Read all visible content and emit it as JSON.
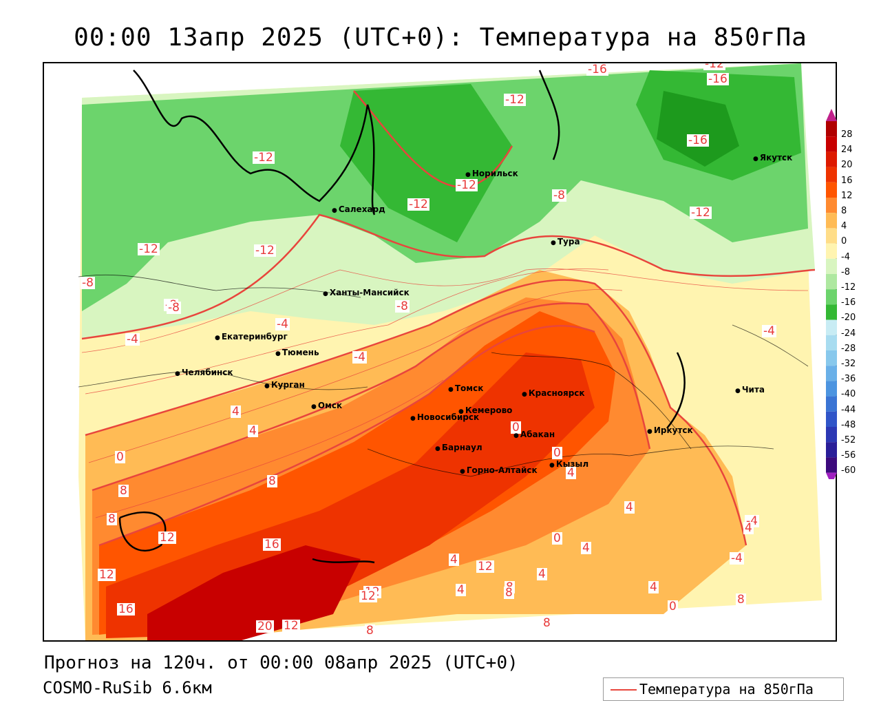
{
  "header": {
    "title": "00:00 13апр 2025 (UTC+0): Температура на 850гПа"
  },
  "footer": {
    "forecast": "Прогноз на 120ч. от 00:00 08апр 2025 (UTC+0)",
    "model": "COSMO-RuSib 6.6км",
    "legend_label": "Температура на 850гПа"
  },
  "colors": {
    "contour": "#e8453c",
    "coast": "#000000"
  },
  "colorbar": {
    "labels": [
      "28",
      "24",
      "20",
      "16",
      "12",
      "8",
      "4",
      "0",
      "-4",
      "-8",
      "-12",
      "-16",
      "-20",
      "-24",
      "-28",
      "-32",
      "-36",
      "-40",
      "-44",
      "-48",
      "-52",
      "-56",
      "-60"
    ],
    "colors": [
      "#b00000",
      "#c80000",
      "#dd1a00",
      "#ee3300",
      "#ff5500",
      "#ff8a30",
      "#ffbb55",
      "#ffdd88",
      "#fff4b0",
      "#d8f5c0",
      "#aee8a0",
      "#6cd46c",
      "#34b834",
      "#c8ecf4",
      "#a8dcf0",
      "#88c8ec",
      "#6ab0e8",
      "#4c94e0",
      "#3a74d4",
      "#3055c8",
      "#2c38b4",
      "#2a1e98",
      "#3c0a7c"
    ]
  },
  "cities": [
    {
      "name": "Норильск"
    },
    {
      "name": "Якутск"
    },
    {
      "name": "Салехард"
    },
    {
      "name": "Тура"
    },
    {
      "name": "Ханты-Мансийск"
    },
    {
      "name": "Екатеринбург"
    },
    {
      "name": "Тюмень"
    },
    {
      "name": "Челябинск"
    },
    {
      "name": "Курган"
    },
    {
      "name": "Омск"
    },
    {
      "name": "Томск"
    },
    {
      "name": "Красноярск"
    },
    {
      "name": "Новосибирск"
    },
    {
      "name": "Кемерово"
    },
    {
      "name": "Абакан"
    },
    {
      "name": "Барнаул"
    },
    {
      "name": "Иркутск"
    },
    {
      "name": "Горно-Алтайск"
    },
    {
      "name": "Кызыл"
    },
    {
      "name": "Чита"
    }
  ],
  "isotherm_labels": [
    "-16",
    "-12",
    "-16",
    "-16",
    "-12",
    "-12",
    "-12",
    "-8",
    "-12",
    "-12",
    "-8",
    "-8",
    "-4",
    "-4",
    "-4",
    "-8",
    "-8",
    "-4",
    "4",
    "0",
    "8",
    "-4",
    "8",
    "0",
    "4",
    "0",
    "4",
    "8",
    "12",
    "16",
    "12",
    "16",
    "20",
    "12",
    "8",
    "8",
    "12",
    "4",
    "4",
    "4",
    "0",
    "12",
    "4",
    "8",
    "4",
    "12",
    "8",
    "8",
    "4",
    "8",
    "-4",
    "4",
    "0",
    "-12",
    "-12"
  ]
}
